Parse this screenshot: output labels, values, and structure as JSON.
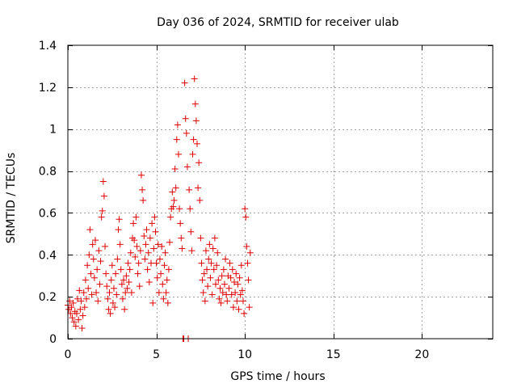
{
  "chart_data": {
    "type": "scatter",
    "title": "Day 036 of 2024, SRMTID for receiver ulab",
    "xlabel": "GPS time / hours",
    "ylabel": "SRMTID / TECUs",
    "xlim": [
      0,
      24
    ],
    "ylim": [
      0,
      1.4
    ],
    "xticks": [
      0,
      5,
      10,
      15,
      20
    ],
    "yticks": [
      0,
      0.2,
      0.4,
      0.6,
      0.8,
      1,
      1.2,
      1.4
    ],
    "xtick_labels": [
      "0",
      "5",
      "10",
      "15",
      "20"
    ],
    "ytick_labels": [
      "0",
      "0.2",
      "0.4",
      "0.6",
      "0.8",
      "1",
      "1.2",
      "1.4"
    ],
    "grid": true,
    "marker": "+",
    "marker_color": "#e00000",
    "series": [
      {
        "name": "SRMTID",
        "points": [
          [
            0.0,
            0.16
          ],
          [
            0.05,
            0.14
          ],
          [
            0.1,
            0.18
          ],
          [
            0.15,
            0.12
          ],
          [
            0.2,
            0.15
          ],
          [
            0.25,
            0.1
          ],
          [
            0.3,
            0.17
          ],
          [
            0.35,
            0.08
          ],
          [
            0.4,
            0.13
          ],
          [
            0.45,
            0.06
          ],
          [
            0.5,
            0.12
          ],
          [
            0.55,
            0.19
          ],
          [
            0.6,
            0.09
          ],
          [
            0.65,
            0.23
          ],
          [
            0.7,
            0.14
          ],
          [
            0.75,
            0.18
          ],
          [
            0.8,
            0.05
          ],
          [
            0.85,
            0.11
          ],
          [
            0.9,
            0.22
          ],
          [
            0.95,
            0.15
          ],
          [
            1.0,
            0.28
          ],
          [
            1.05,
            0.19
          ],
          [
            1.1,
            0.35
          ],
          [
            1.15,
            0.24
          ],
          [
            1.2,
            0.4
          ],
          [
            1.25,
            0.52
          ],
          [
            1.3,
            0.31
          ],
          [
            1.35,
            0.21
          ],
          [
            1.4,
            0.45
          ],
          [
            1.45,
            0.38
          ],
          [
            1.5,
            0.29
          ],
          [
            1.55,
            0.47
          ],
          [
            1.6,
            0.22
          ],
          [
            1.65,
            0.33
          ],
          [
            1.7,
            0.18
          ],
          [
            1.75,
            0.42
          ],
          [
            1.8,
            0.26
          ],
          [
            1.85,
            0.37
          ],
          [
            1.9,
            0.58
          ],
          [
            1.95,
            0.61
          ],
          [
            2.0,
            0.75
          ],
          [
            2.05,
            0.68
          ],
          [
            2.1,
            0.44
          ],
          [
            2.15,
            0.31
          ],
          [
            2.2,
            0.25
          ],
          [
            2.25,
            0.19
          ],
          [
            2.3,
            0.14
          ],
          [
            2.35,
            0.22
          ],
          [
            2.4,
            0.12
          ],
          [
            2.45,
            0.28
          ],
          [
            2.5,
            0.35
          ],
          [
            2.55,
            0.17
          ],
          [
            2.6,
            0.24
          ],
          [
            2.65,
            0.15
          ],
          [
            2.7,
            0.31
          ],
          [
            2.75,
            0.21
          ],
          [
            2.8,
            0.38
          ],
          [
            2.85,
            0.52
          ],
          [
            2.9,
            0.57
          ],
          [
            2.95,
            0.45
          ],
          [
            3.0,
            0.33
          ],
          [
            3.05,
            0.26
          ],
          [
            3.1,
            0.19
          ],
          [
            3.15,
            0.28
          ],
          [
            3.2,
            0.14
          ],
          [
            3.25,
            0.22
          ],
          [
            3.3,
            0.3
          ],
          [
            3.35,
            0.24
          ],
          [
            3.4,
            0.36
          ],
          [
            3.45,
            0.27
          ],
          [
            3.5,
            0.33
          ],
          [
            3.55,
            0.41
          ],
          [
            3.6,
            0.22
          ],
          [
            3.65,
            0.48
          ],
          [
            3.7,
            0.55
          ],
          [
            3.75,
            0.47
          ],
          [
            3.8,
            0.39
          ],
          [
            3.85,
            0.58
          ],
          [
            3.9,
            0.44
          ],
          [
            3.95,
            0.31
          ],
          [
            4.0,
            0.36
          ],
          [
            4.05,
            0.25
          ],
          [
            4.1,
            0.42
          ],
          [
            4.15,
            0.78
          ],
          [
            4.2,
            0.71
          ],
          [
            4.25,
            0.66
          ],
          [
            4.3,
            0.49
          ],
          [
            4.35,
            0.38
          ],
          [
            4.4,
            0.45
          ],
          [
            4.45,
            0.52
          ],
          [
            4.5,
            0.33
          ],
          [
            4.55,
            0.41
          ],
          [
            4.6,
            0.27
          ],
          [
            4.65,
            0.48
          ],
          [
            4.7,
            0.36
          ],
          [
            4.75,
            0.55
          ],
          [
            4.8,
            0.17
          ],
          [
            4.85,
            0.43
          ],
          [
            4.9,
            0.58
          ],
          [
            4.95,
            0.51
          ],
          [
            5.0,
            0.36
          ],
          [
            5.05,
            0.29
          ],
          [
            5.1,
            0.45
          ],
          [
            5.15,
            0.22
          ],
          [
            5.2,
            0.38
          ],
          [
            5.25,
            0.31
          ],
          [
            5.3,
            0.44
          ],
          [
            5.35,
            0.26
          ],
          [
            5.4,
            0.19
          ],
          [
            5.45,
            0.35
          ],
          [
            5.5,
            0.41
          ],
          [
            5.55,
            0.22
          ],
          [
            5.6,
            0.28
          ],
          [
            5.65,
            0.17
          ],
          [
            5.7,
            0.33
          ],
          [
            5.75,
            0.46
          ],
          [
            5.8,
            0.58
          ],
          [
            5.85,
            0.62
          ],
          [
            5.9,
            0.7
          ],
          [
            5.95,
            0.63
          ],
          [
            6.0,
            0.66
          ],
          [
            6.05,
            0.81
          ],
          [
            6.1,
            0.72
          ],
          [
            6.15,
            0.95
          ],
          [
            6.2,
            1.02
          ],
          [
            6.25,
            0.88
          ],
          [
            6.3,
            0.62
          ],
          [
            6.35,
            0.55
          ],
          [
            6.4,
            0.48
          ],
          [
            6.45,
            0.43
          ],
          [
            6.5,
            0.0
          ],
          [
            6.55,
            0.0
          ],
          [
            6.6,
            1.22
          ],
          [
            6.65,
            1.05
          ],
          [
            6.7,
            0.98
          ],
          [
            6.75,
            0.82
          ],
          [
            6.8,
            0.0
          ],
          [
            6.85,
            0.71
          ],
          [
            6.9,
            0.62
          ],
          [
            6.95,
            0.51
          ],
          [
            7.0,
            0.42
          ],
          [
            7.05,
            0.88
          ],
          [
            7.1,
            0.95
          ],
          [
            7.15,
            1.24
          ],
          [
            7.2,
            1.12
          ],
          [
            7.25,
            1.04
          ],
          [
            7.3,
            0.93
          ],
          [
            7.35,
            0.72
          ],
          [
            7.4,
            0.84
          ],
          [
            7.45,
            0.66
          ],
          [
            7.5,
            0.48
          ],
          [
            7.55,
            0.36
          ],
          [
            7.6,
            0.28
          ],
          [
            7.65,
            0.22
          ],
          [
            7.7,
            0.31
          ],
          [
            7.75,
            0.18
          ],
          [
            7.8,
            0.42
          ],
          [
            7.85,
            0.33
          ],
          [
            7.9,
            0.25
          ],
          [
            7.95,
            0.38
          ],
          [
            8.0,
            0.45
          ],
          [
            8.05,
            0.29
          ],
          [
            8.1,
            0.36
          ],
          [
            8.15,
            0.21
          ],
          [
            8.2,
            0.43
          ],
          [
            8.25,
            0.33
          ],
          [
            8.3,
            0.48
          ],
          [
            8.35,
            0.26
          ],
          [
            8.4,
            0.35
          ],
          [
            8.45,
            0.41
          ],
          [
            8.5,
            0.28
          ],
          [
            8.55,
            0.19
          ],
          [
            8.6,
            0.24
          ],
          [
            8.65,
            0.17
          ],
          [
            8.7,
            0.3
          ],
          [
            8.75,
            0.22
          ],
          [
            8.8,
            0.33
          ],
          [
            8.85,
            0.26
          ],
          [
            8.9,
            0.38
          ],
          [
            8.95,
            0.21
          ],
          [
            9.0,
            0.18
          ],
          [
            9.05,
            0.3
          ],
          [
            9.1,
            0.24
          ],
          [
            9.15,
            0.36
          ],
          [
            9.2,
            0.29
          ],
          [
            9.25,
            0.21
          ],
          [
            9.3,
            0.33
          ],
          [
            9.35,
            0.15
          ],
          [
            9.4,
            0.27
          ],
          [
            9.45,
            0.22
          ],
          [
            9.5,
            0.31
          ],
          [
            9.55,
            0.18
          ],
          [
            9.6,
            0.26
          ],
          [
            9.65,
            0.14
          ],
          [
            9.7,
            0.29
          ],
          [
            9.75,
            0.21
          ],
          [
            9.8,
            0.35
          ],
          [
            9.85,
            0.23
          ],
          [
            9.9,
            0.18
          ],
          [
            9.95,
            0.12
          ],
          [
            10.0,
            0.62
          ],
          [
            10.05,
            0.58
          ],
          [
            10.1,
            0.44
          ],
          [
            10.15,
            0.36
          ],
          [
            10.2,
            0.28
          ],
          [
            10.25,
            0.15
          ],
          [
            10.3,
            0.41
          ]
        ]
      }
    ]
  }
}
